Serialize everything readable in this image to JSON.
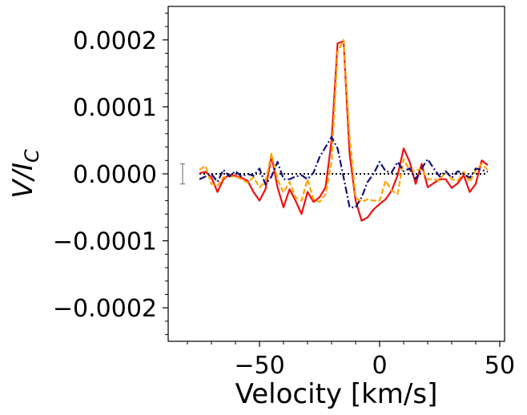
{
  "chart_data": {
    "type": "line",
    "title": "",
    "xlabel": "Velocity [km/s]",
    "ylabel_main": "V/I",
    "ylabel_sub": "C",
    "xlim": [
      -88,
      52
    ],
    "ylim": [
      -0.00025,
      0.00025
    ],
    "x_ticks": [
      -50,
      0,
      50
    ],
    "x_tick_labels": [
      "−50",
      "0",
      "50"
    ],
    "y_ticks": [
      0.0002,
      0.0001,
      0.0,
      -0.0001,
      -0.0002
    ],
    "y_tick_labels": [
      "0.0002",
      "0.0001",
      "0.0000",
      "−0.0001",
      "−0.0002"
    ],
    "error_bar": {
      "x": -82,
      "y": 0.0,
      "err": 1.5e-05,
      "color": "#888888"
    },
    "zero_line": {
      "y": 0.0,
      "x_range": [
        -75,
        45
      ],
      "color": "#000000",
      "style": "dotted"
    },
    "x": [
      -75,
      -72.5,
      -70,
      -67.5,
      -65,
      -62.5,
      -60,
      -57.5,
      -55,
      -52.5,
      -50,
      -47.5,
      -45,
      -42.5,
      -40,
      -37.5,
      -35,
      -32.5,
      -30,
      -27.5,
      -25,
      -22.5,
      -20,
      -17.5,
      -15,
      -12.5,
      -10,
      -7.5,
      -5,
      -2.5,
      0,
      2.5,
      5,
      7.5,
      10,
      12.5,
      15,
      17.5,
      20,
      22.5,
      25,
      27.5,
      30,
      32.5,
      35,
      37.5,
      40,
      42.5,
      45
    ],
    "series": [
      {
        "name": "red",
        "color": "#ee1111",
        "style": "solid",
        "values": [
          1e-06,
          3e-06,
          -5e-06,
          -2.7e-05,
          -8e-06,
          -1e-06,
          -3e-06,
          -6e-06,
          -1e-05,
          -2.7e-05,
          -4e-05,
          -2.3e-05,
          2.7e-05,
          -2e-05,
          -5e-05,
          -2.3e-05,
          -4e-05,
          -6e-05,
          -2.7e-05,
          -4.2e-05,
          -3.5e-05,
          -2e-05,
          5e-05,
          0.000195,
          0.000198,
          3e-05,
          -4e-05,
          -7e-05,
          -6.5e-05,
          -5.3e-05,
          -4.5e-05,
          -3.8e-05,
          -2.5e-05,
          -2e-06,
          3.8e-05,
          1.8e-05,
          -1.5e-05,
          1.5e-05,
          -2e-05,
          -1.4e-05,
          -8e-06,
          -8e-06,
          -2.1e-05,
          -1.4e-05,
          -2e-06,
          -2.7e-05,
          -1.5e-05,
          2e-05,
          1.3e-05
        ]
      },
      {
        "name": "orange",
        "color": "#ffa500",
        "style": "dashed",
        "values": [
          6e-06,
          1.2e-05,
          -1.5e-05,
          -1.8e-05,
          -5e-06,
          -4e-06,
          -4e-06,
          -8e-06,
          -1.3e-05,
          -5e-06,
          -2e-05,
          -1.2e-05,
          3e-05,
          -8e-06,
          -2.8e-05,
          -1.2e-05,
          -3.5e-05,
          -4e-05,
          -8e-06,
          -3.8e-05,
          -4.2e-05,
          -3e-05,
          1.8e-05,
          0.000182,
          0.0002,
          5.5e-05,
          -3.5e-05,
          -4.2e-05,
          -3.8e-05,
          -4e-05,
          -4e-05,
          -1e-05,
          -2.5e-05,
          -3e-05,
          2.2e-05,
          5e-06,
          5e-06,
          8e-06,
          -8e-06,
          -8e-06,
          -1e-05,
          4e-06,
          -8e-06,
          -1e-05,
          3e-06,
          -1.2e-05,
          5e-06,
          1.5e-05,
          6e-06
        ]
      },
      {
        "name": "navy",
        "color": "#11117a",
        "style": "dashdot",
        "values": [
          -8e-06,
          -4e-06,
          0.0,
          -1.2e-05,
          6e-06,
          -4e-06,
          4e-06,
          -4e-06,
          0.0,
          -3e-06,
          8e-06,
          -1.6e-05,
          -4e-06,
          1.8e-05,
          -8e-06,
          -8e-06,
          -4e-06,
          -2e-06,
          -8e-06,
          2e-06,
          2.5e-05,
          4e-05,
          5.5e-05,
          3.8e-05,
          -5e-06,
          -5e-05,
          -5e-05,
          -3.5e-05,
          -1.2e-05,
          0.0,
          1.8e-05,
          4e-06,
          2e-06,
          1.8e-05,
          4e-06,
          8e-06,
          -8e-06,
          8e-06,
          2.2e-05,
          8e-06,
          -4e-06,
          4e-06,
          -6e-06,
          4e-06,
          0.0,
          -6e-06,
          8e-06,
          6e-06,
          3e-06
        ]
      }
    ]
  }
}
